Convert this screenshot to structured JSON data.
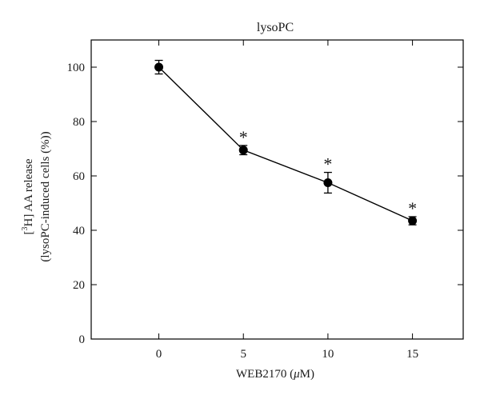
{
  "chart_data": {
    "type": "line",
    "title": "lysoPC",
    "xlabel": "WEB2170 (μM)",
    "xlabel_parts": {
      "pre": "WEB2170 (",
      "mu": "μ",
      "unit": "M)"
    },
    "ylabel_line1_parts": {
      "open": "[",
      "sup": "3",
      "rest": "H] AA release"
    },
    "ylabel_line2": "(lysoPC-induced cells (%))",
    "x": [
      0,
      5,
      10,
      15
    ],
    "x_tick_labels": [
      "0",
      "5",
      "10",
      "15"
    ],
    "y_ticks": [
      0,
      20,
      40,
      60,
      80,
      100
    ],
    "y_tick_labels": [
      "0",
      "20",
      "40",
      "60",
      "80",
      "100"
    ],
    "xlim": [
      -4,
      18
    ],
    "ylim": [
      0,
      110
    ],
    "series": [
      {
        "values": [
          100,
          69.5,
          57.5,
          43.5
        ],
        "errors": [
          2.5,
          1.7,
          3.8,
          1.5
        ],
        "significance": [
          "",
          "*",
          "*",
          "*"
        ],
        "color": "#000000"
      }
    ],
    "grid": false
  }
}
